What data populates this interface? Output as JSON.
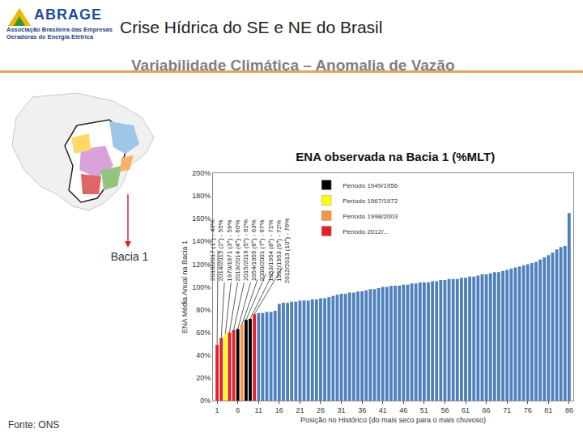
{
  "header": {
    "logo": "ABRAGE",
    "organization": "Associação Brasileira das Empresas Geradoras de Energia Elétrica",
    "title": "Crise Hídrica do SE e NE do Brasil",
    "subtitle": "Variabilidade Climática – Anomalia de Vazão"
  },
  "map": {
    "label": "Bacia 1"
  },
  "footer": {
    "source": "Fonte: ONS"
  },
  "chart_data": {
    "type": "bar",
    "title": "ENA observada na Bacia 1 (%MLT)",
    "x_label": "Posição no Histórico (do mais seco para o mais chuvoso)",
    "y_label": "ENA Média Anual na Bacia 1",
    "x": [
      1,
      2,
      3,
      4,
      5,
      6,
      7,
      8,
      9,
      10,
      11,
      12,
      13,
      14,
      15,
      16,
      17,
      18,
      19,
      20,
      21,
      22,
      23,
      24,
      25,
      26,
      27,
      28,
      29,
      30,
      31,
      32,
      33,
      34,
      35,
      36,
      37,
      38,
      39,
      40,
      41,
      42,
      43,
      44,
      45,
      46,
      47,
      48,
      49,
      50,
      51,
      52,
      53,
      54,
      55,
      56,
      57,
      58,
      59,
      60,
      61,
      62,
      63,
      64,
      65,
      66,
      67,
      68,
      69,
      70,
      71,
      72,
      73,
      74,
      75,
      76,
      77,
      78,
      79,
      80,
      81,
      82,
      83,
      84,
      85,
      86
    ],
    "values": [
      49,
      55,
      59,
      60,
      62,
      63,
      67,
      71,
      72,
      76,
      77,
      77,
      78,
      78,
      79,
      85,
      86,
      86,
      87,
      87,
      88,
      88,
      88,
      89,
      89,
      90,
      90,
      91,
      92,
      93,
      94,
      94,
      95,
      95,
      96,
      96,
      97,
      98,
      98,
      99,
      100,
      100,
      101,
      101,
      101,
      102,
      102,
      103,
      103,
      104,
      104,
      104,
      105,
      105,
      106,
      106,
      107,
      107,
      107,
      108,
      108,
      109,
      109,
      110,
      111,
      111,
      112,
      113,
      113,
      114,
      115,
      116,
      117,
      118,
      119,
      120,
      121,
      122,
      124,
      126,
      128,
      130,
      133,
      135,
      136,
      165
    ],
    "colors": [
      "#e3202a",
      "#e3202a",
      "#ffff00",
      "#e3202a",
      "#e3202a",
      "#000000",
      "#f79646",
      "#000000",
      "#000000",
      "#e3202a",
      "#4f81bd",
      "#4f81bd",
      "#4f81bd",
      "#4f81bd",
      "#4f81bd",
      "#4f81bd",
      "#4f81bd",
      "#4f81bd",
      "#4f81bd",
      "#4f81bd",
      "#4f81bd",
      "#4f81bd",
      "#4f81bd",
      "#4f81bd",
      "#4f81bd",
      "#4f81bd",
      "#4f81bd",
      "#4f81bd",
      "#4f81bd",
      "#4f81bd",
      "#4f81bd",
      "#4f81bd",
      "#4f81bd",
      "#4f81bd",
      "#4f81bd",
      "#4f81bd",
      "#4f81bd",
      "#4f81bd",
      "#4f81bd",
      "#4f81bd",
      "#4f81bd",
      "#4f81bd",
      "#4f81bd",
      "#4f81bd",
      "#4f81bd",
      "#4f81bd",
      "#4f81bd",
      "#4f81bd",
      "#4f81bd",
      "#4f81bd",
      "#4f81bd",
      "#4f81bd",
      "#4f81bd",
      "#4f81bd",
      "#4f81bd",
      "#4f81bd",
      "#4f81bd",
      "#4f81bd",
      "#4f81bd",
      "#4f81bd",
      "#4f81bd",
      "#4f81bd",
      "#4f81bd",
      "#4f81bd",
      "#4f81bd",
      "#4f81bd",
      "#4f81bd",
      "#4f81bd",
      "#4f81bd",
      "#4f81bd",
      "#4f81bd",
      "#4f81bd",
      "#4f81bd",
      "#4f81bd",
      "#4f81bd",
      "#4f81bd",
      "#4f81bd",
      "#4f81bd",
      "#4f81bd",
      "#4f81bd",
      "#4f81bd",
      "#4f81bd",
      "#4f81bd",
      "#4f81bd",
      "#4f81bd",
      "#4f81bd"
    ],
    "xlim": [
      0,
      87
    ],
    "xticks": [
      1,
      6,
      11,
      16,
      21,
      26,
      31,
      36,
      41,
      46,
      51,
      56,
      61,
      66,
      71,
      76,
      81,
      86
    ],
    "ylim": [
      0,
      200
    ],
    "yticks": [
      {
        "value": 0,
        "label": "0%"
      },
      {
        "value": 20,
        "label": "20%"
      },
      {
        "value": 40,
        "label": "40%"
      },
      {
        "value": 60,
        "label": "60%"
      },
      {
        "value": 80,
        "label": "80%"
      },
      {
        "value": 100,
        "label": "100%"
      },
      {
        "value": 120,
        "label": "120%"
      },
      {
        "value": 140,
        "label": "140%"
      },
      {
        "value": 160,
        "label": "160%"
      },
      {
        "value": 180,
        "label": "180%"
      },
      {
        "value": 200,
        "label": "200%"
      }
    ],
    "grid": false,
    "legend": "upper left",
    "periods": [
      {
        "name": "Período 1949/1956",
        "color": "#000000"
      },
      {
        "name": "Período 1967/1972",
        "color": "#ffff00"
      },
      {
        "name": "Período 1998/2003",
        "color": "#f79646"
      },
      {
        "name": "Período 2012/...",
        "color": "#e3202a"
      }
    ],
    "annotations": [
      {
        "x": 1,
        "text": "2016/2017 (1°) - 49%"
      },
      {
        "x": 2,
        "text": "2014/2015 (2°) - 55%"
      },
      {
        "x": 3,
        "text": "1970/1971 (3°) - 59%"
      },
      {
        "x": 4,
        "text": "2013/2014 (4°) - 60%"
      },
      {
        "x": 5,
        "text": "2015/2016 (5°) - 62%"
      },
      {
        "x": 6,
        "text": "1954/1955 (6°) - 63%"
      },
      {
        "x": 7,
        "text": "2000/2001 (7°) - 67%"
      },
      {
        "x": 8,
        "text": "1953/1954 (8°) - 71%"
      },
      {
        "x": 9,
        "text": "1952/1953 (9°) - 72%"
      },
      {
        "x": 10,
        "text": "2012/2013 (10°) - 76%"
      }
    ]
  }
}
